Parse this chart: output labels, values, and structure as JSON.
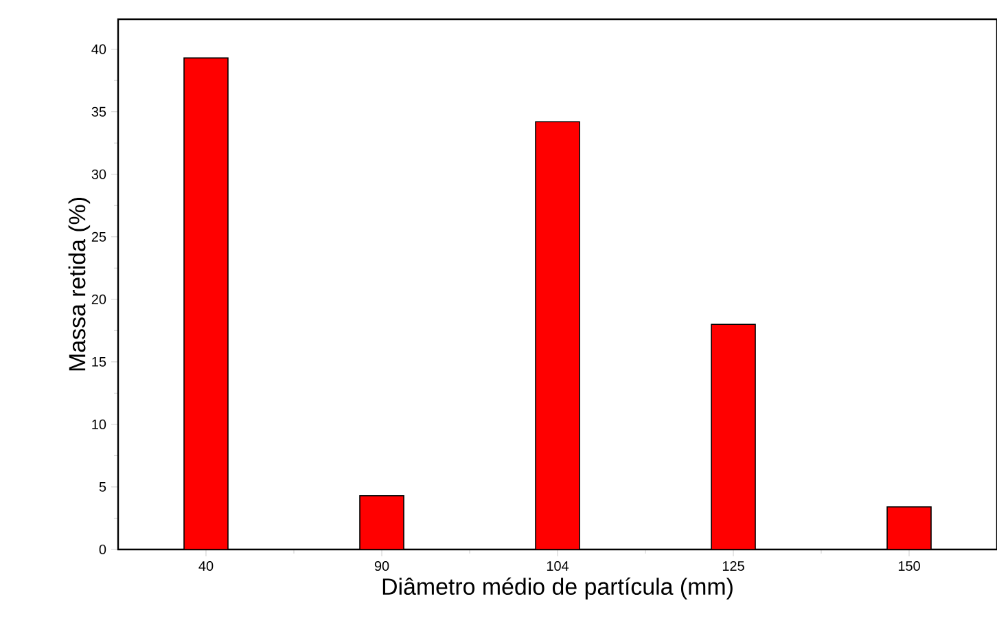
{
  "chart_data": {
    "type": "bar",
    "xlabel": "Diâmetro médio de partícula (mm)",
    "ylabel": "Massa retida (%)",
    "categories": [
      "40",
      "90",
      "104",
      "125",
      "150"
    ],
    "values": [
      39.3,
      4.3,
      34.2,
      18.0,
      3.4
    ],
    "color": "#ff0000",
    "ylim": [
      0,
      42.4
    ],
    "yticks": [
      0,
      5,
      10,
      15,
      20,
      25,
      30,
      35,
      40
    ],
    "grid": false
  }
}
